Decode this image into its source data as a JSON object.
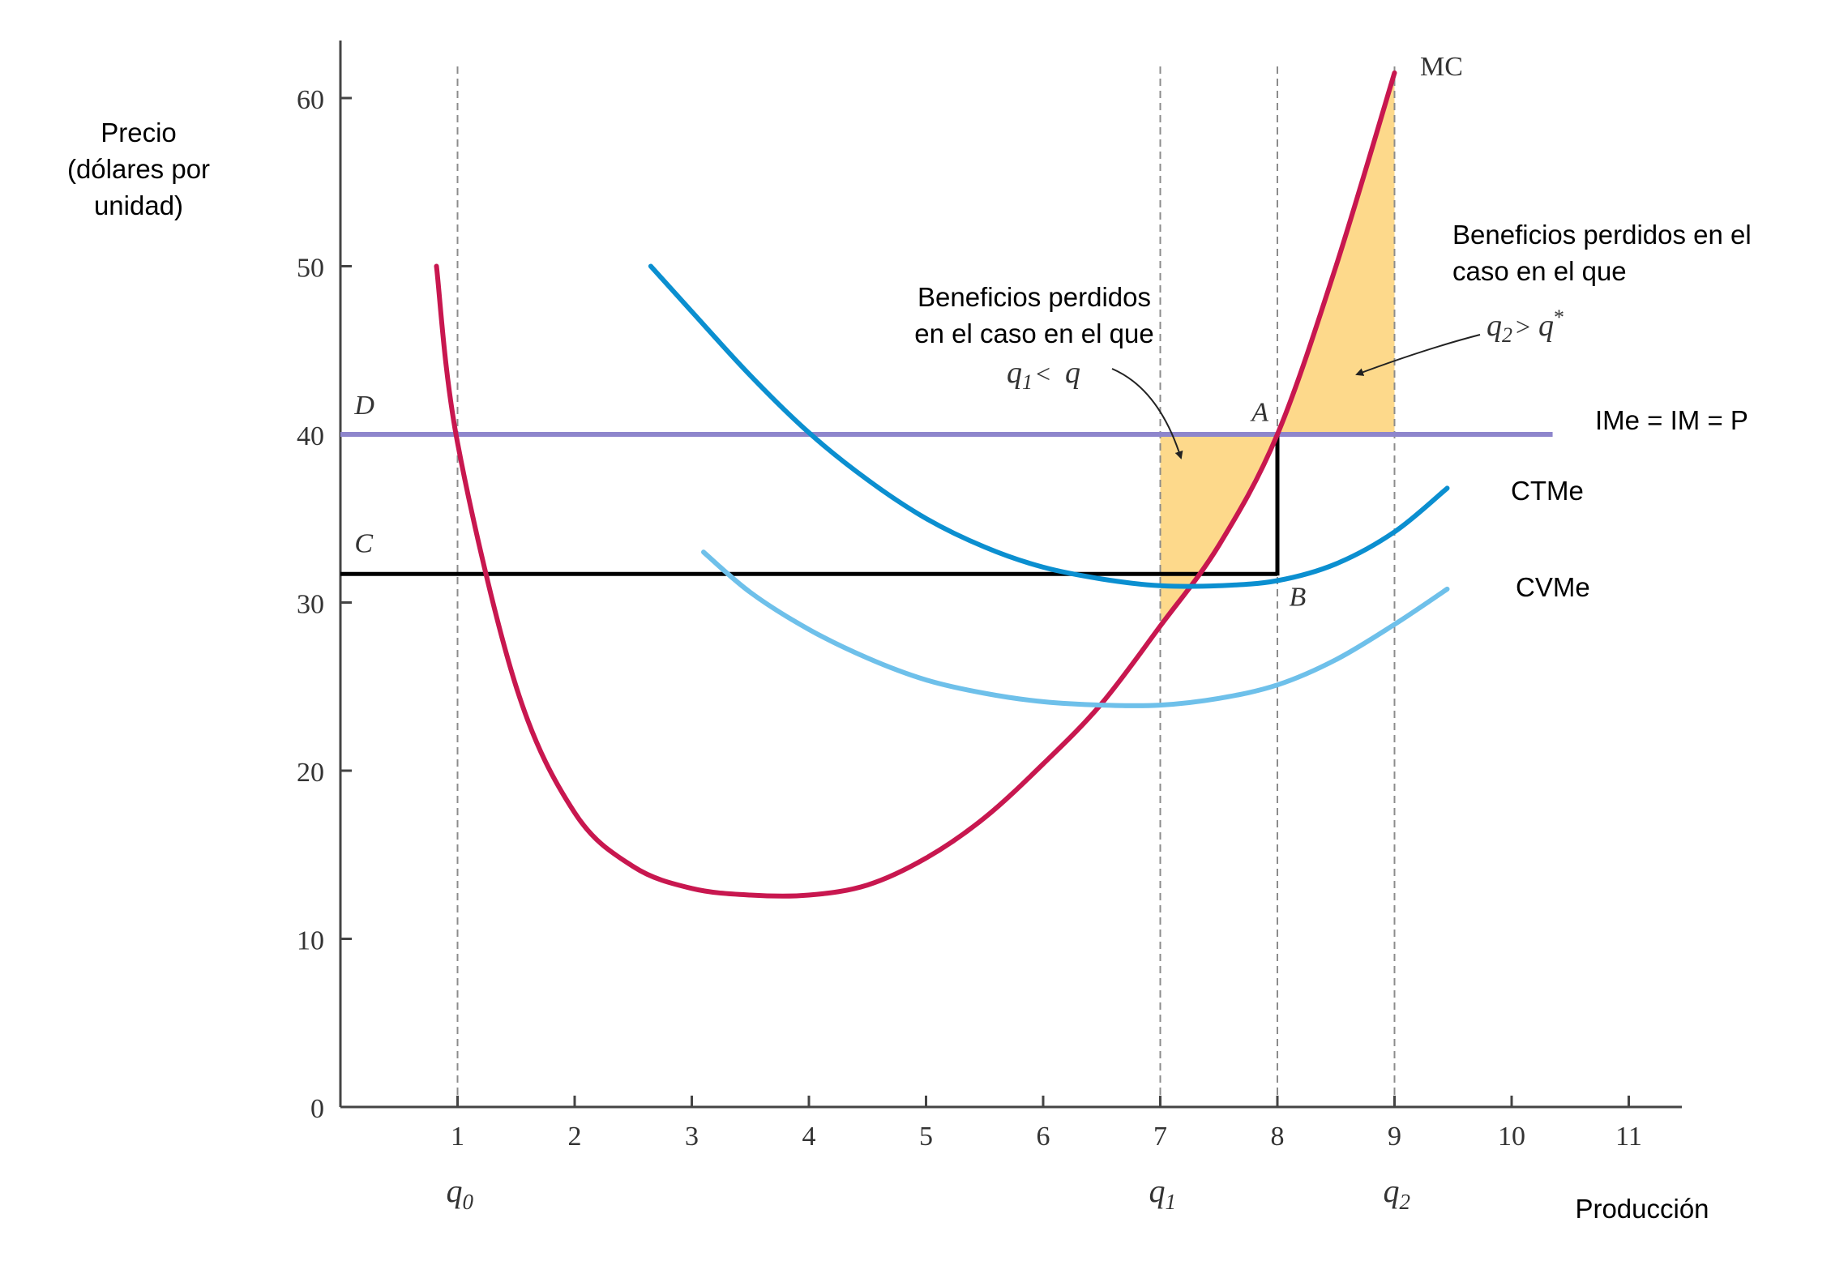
{
  "chart_data": {
    "type": "line",
    "ylabel_lines": [
      "Precio",
      "(dólares por",
      "unidad)"
    ],
    "xlabel": "Producción",
    "xlim": [
      0,
      11.6
    ],
    "ylim": [
      0,
      63.5
    ],
    "x_ticks": [
      1,
      2,
      3,
      4,
      5,
      6,
      7,
      8,
      9,
      10,
      11
    ],
    "x_tick_labels": [
      "1",
      "2",
      "3",
      "4",
      "5",
      "6",
      "7",
      "8",
      "9",
      "10",
      "11"
    ],
    "y_ticks": [
      0,
      10,
      20,
      30,
      40,
      50,
      60
    ],
    "y_tick_labels": [
      "0",
      "10",
      "20",
      "30",
      "40",
      "50",
      "60"
    ],
    "quantity_labels": [
      {
        "base": "q",
        "sub": "0",
        "x": 1
      },
      {
        "base": "q",
        "sub": "1",
        "x": 7
      },
      {
        "base": "q",
        "sub": "2",
        "x": 9
      }
    ],
    "colors": {
      "mc": "#c8174f",
      "ctme": "#0b8fd0",
      "cvme": "#6ec0ea",
      "price_line": "#8e86cc",
      "shade": "#fdd98b",
      "guide": "#8c8c8c",
      "axis": "#444444"
    },
    "series": [
      {
        "name": "MC",
        "label": "MC",
        "x": [
          0.82,
          1.0,
          1.5,
          2.0,
          2.5,
          3.0,
          3.5,
          4.0,
          4.5,
          5.0,
          5.5,
          6.0,
          6.5,
          7.0,
          7.5,
          8.0,
          8.5,
          9.0
        ],
        "y": [
          50.0,
          39.5,
          25.0,
          17.5,
          14.3,
          13.0,
          12.6,
          12.6,
          13.2,
          14.8,
          17.2,
          20.4,
          24.0,
          28.6,
          33.4,
          40.0,
          50.0,
          61.5
        ]
      },
      {
        "name": "CTMe",
        "label": "CTMe",
        "x": [
          2.65,
          3.0,
          3.5,
          4.0,
          4.5,
          5.0,
          5.5,
          6.0,
          6.5,
          7.0,
          7.5,
          8.0,
          8.5,
          9.0,
          9.45
        ],
        "y": [
          50.0,
          47.3,
          43.5,
          40.1,
          37.3,
          35.0,
          33.3,
          32.1,
          31.4,
          31.0,
          31.0,
          31.3,
          32.3,
          34.2,
          36.8
        ]
      },
      {
        "name": "CVMe",
        "label": "CVMe",
        "x": [
          3.1,
          3.5,
          4.0,
          4.5,
          5.0,
          5.5,
          6.0,
          6.5,
          7.0,
          7.5,
          8.0,
          8.5,
          9.0,
          9.45
        ],
        "y": [
          33.0,
          30.6,
          28.4,
          26.7,
          25.4,
          24.6,
          24.1,
          23.9,
          23.9,
          24.3,
          25.1,
          26.6,
          28.7,
          30.8
        ]
      }
    ],
    "price_line": {
      "y": 40,
      "x_end": 10.35,
      "label": "IMe = IM = P"
    },
    "cost_line": {
      "y": 31.7,
      "x_end": 8.0
    },
    "guide_lines_x": [
      1,
      7,
      8,
      9
    ],
    "shaded_regions": [
      {
        "from_x": 7.0,
        "to_x": 8.0,
        "between": "MC and P=40"
      },
      {
        "from_x": 8.0,
        "to_x": 9.0,
        "between": "P=40 and MC"
      }
    ],
    "point_labels": [
      {
        "text": "D",
        "x": 0.12,
        "y": 41.2
      },
      {
        "text": "C",
        "x": 0.12,
        "y": 33.0
      },
      {
        "text": "A",
        "x": 7.78,
        "y": 40.8
      },
      {
        "text": "B",
        "x": 8.1,
        "y": 29.8
      }
    ],
    "annotations": [
      {
        "lines": [
          "Beneficios perdidos",
          "en el caso en el que"
        ],
        "formula": {
          "left": "q",
          "left_sub": "1",
          "op": "<",
          "right": "q"
        }
      },
      {
        "lines": [
          "Beneficios perdidos en el",
          "caso en el que"
        ],
        "formula": {
          "left": "q",
          "left_sub": "2",
          "op": ">",
          "right": "q",
          "right_sup": "*"
        }
      }
    ]
  }
}
